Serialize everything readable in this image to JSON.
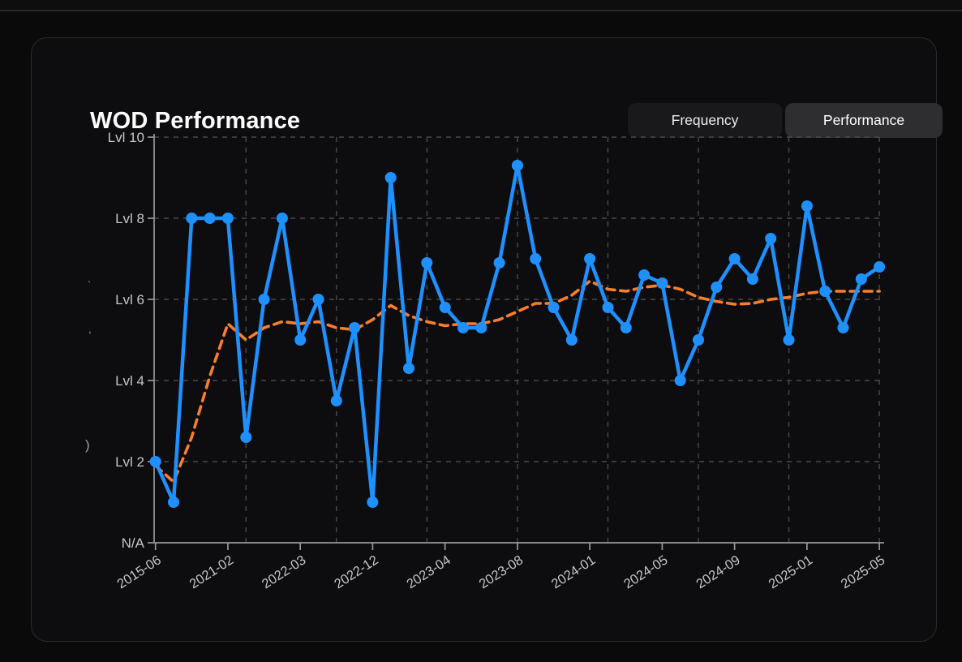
{
  "card": {
    "title": "WOD Performance",
    "tabs": [
      {
        "label": "Frequency",
        "active": false
      },
      {
        "label": "Performance",
        "active": true
      }
    ]
  },
  "chart_data": {
    "type": "line",
    "title": "WOD Performance",
    "ylim": [
      0,
      10
    ],
    "grid": {
      "on": true,
      "h_levels": [
        2,
        4,
        6,
        8,
        10
      ],
      "v_indices": [
        5,
        10,
        15,
        20,
        25,
        30,
        35,
        40
      ]
    },
    "legend": "none",
    "y_ticks": [
      {
        "label": "Lvl 10",
        "level": 10
      },
      {
        "label": "Lvl 8",
        "level": 8
      },
      {
        "label": "Lvl 6",
        "level": 6
      },
      {
        "label": "Lvl 4",
        "level": 4
      },
      {
        "label": "Lvl 2",
        "level": 2
      },
      {
        "label": "N/A",
        "level": 0
      }
    ],
    "x_ticks": [
      {
        "label": "2015-06",
        "index": 0
      },
      {
        "label": "2021-02",
        "index": 4
      },
      {
        "label": "2022-03",
        "index": 8
      },
      {
        "label": "2022-12",
        "index": 12
      },
      {
        "label": "2023-04",
        "index": 16
      },
      {
        "label": "2023-08",
        "index": 20
      },
      {
        "label": "2024-01",
        "index": 24
      },
      {
        "label": "2024-05",
        "index": 28
      },
      {
        "label": "2024-09",
        "index": 32
      },
      {
        "label": "2025-01",
        "index": 36
      },
      {
        "label": "2025-05",
        "index": 40
      }
    ],
    "series": [
      {
        "name": "trend-average",
        "color": "#f97e2b",
        "style": "dashed",
        "markers": false,
        "values": [
          1.9,
          1.5,
          2.6,
          4.1,
          5.4,
          5.0,
          5.3,
          5.45,
          5.4,
          5.45,
          5.3,
          5.25,
          5.5,
          5.85,
          5.6,
          5.45,
          5.35,
          5.4,
          5.4,
          5.5,
          5.7,
          5.9,
          5.9,
          6.1,
          6.45,
          6.25,
          6.2,
          6.3,
          6.35,
          6.25,
          6.05,
          5.95,
          5.88,
          5.9,
          6.0,
          6.05,
          6.15,
          6.2,
          6.2,
          6.2,
          6.2
        ]
      },
      {
        "name": "performance-level",
        "color": "#1e90ff",
        "style": "solid",
        "markers": true,
        "values": [
          2,
          1,
          8,
          8,
          8,
          2.6,
          6,
          8,
          5,
          6,
          3.5,
          5.3,
          1,
          9,
          4.3,
          6.9,
          5.8,
          5.3,
          5.3,
          6.9,
          9.3,
          7,
          5.8,
          5,
          7,
          5.8,
          5.3,
          6.6,
          6.4,
          4,
          5,
          6.3,
          7,
          6.5,
          7.5,
          5,
          8.3,
          6.2,
          5.3,
          6.5,
          6.8
        ]
      }
    ],
    "y_axis_fragments": [
      "`",
      ",",
      ")"
    ],
    "colors": {
      "axis": "#98989c",
      "gridline": "#4a4a4d",
      "tick_text": "#c6c6ca",
      "card_border": "#2b2b2d"
    }
  }
}
